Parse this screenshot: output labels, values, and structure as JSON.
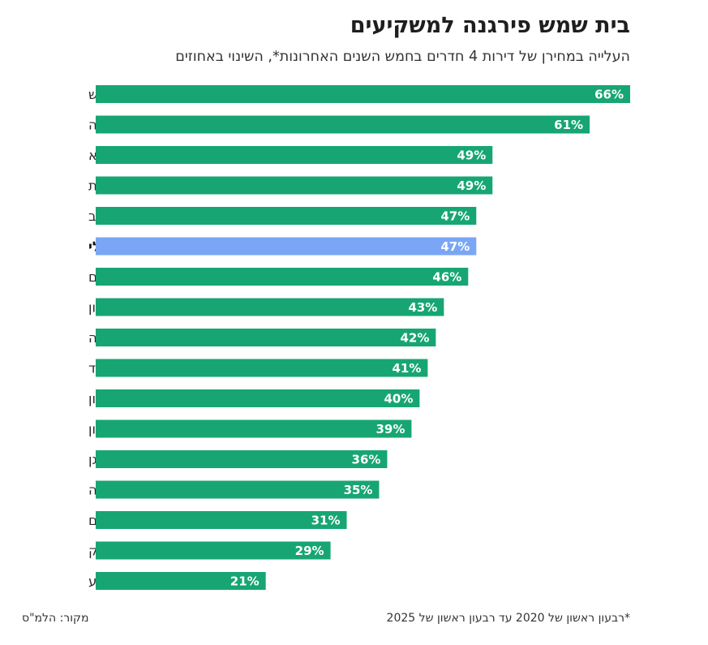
{
  "title": "בית שמש פירגנה למשקיעים",
  "subtitle": "העלייה במחירן של דירות 4 חדרים בחמש השנים האחרונות*, השינוי באחוזים",
  "footnote": "*רבעון ראשון של 2020 עד רבעון ראשון של 2025",
  "source": "מקור: הלמ\"ס",
  "colors": {
    "bar": "#17a673",
    "highlight_bar": "#7aa6f5",
    "value_text": "#ffffff"
  },
  "chart_data": {
    "type": "bar",
    "orientation": "horizontal",
    "title": "בית שמש פירגנה למשקיעים",
    "subtitle": "העלייה במחירן של דירות 4 חדרים בחמש השנים האחרונות*, השינוי באחוזים",
    "xlabel": "",
    "ylabel": "",
    "xlim": [
      0,
      66
    ],
    "grid": false,
    "value_suffix": "%",
    "highlight_category": "כללי",
    "categories": [
      "בית שמש",
      "נתניה",
      "כפר סבא",
      "רחובות",
      "תל אביב",
      "כללי",
      "ירושלים",
      "אשקלון",
      "פתח תקווה",
      "אשדוד",
      "חולון",
      "ראשון לציון",
      "רמת גן",
      "חיפה",
      "בת ים",
      "בני ברק",
      "באר שבע"
    ],
    "values": [
      66,
      61,
      49,
      49,
      47,
      47,
      46,
      43,
      42,
      41,
      40,
      39,
      36,
      35,
      31,
      29,
      21
    ],
    "value_labels": [
      "66%",
      "61%",
      "49%",
      "49%",
      "47%",
      "47%",
      "46%",
      "43%",
      "42%",
      "41%",
      "40%",
      "39%",
      "36%",
      "35%",
      "31%",
      "29%",
      "21%"
    ]
  }
}
